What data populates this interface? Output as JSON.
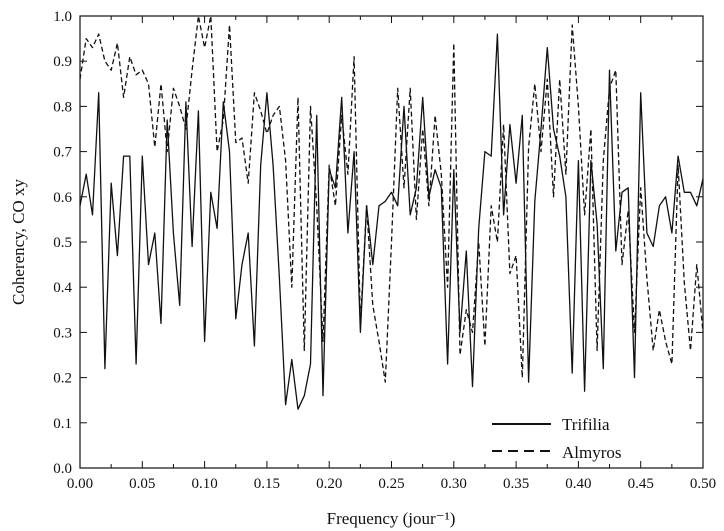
{
  "chart_data": {
    "type": "line",
    "title": "",
    "xlabel": "Frequency (jour⁻¹)",
    "ylabel": "Coherency, CO xy",
    "xlim": [
      0.0,
      0.5
    ],
    "ylim": [
      0.0,
      1.0
    ],
    "x_ticks": [
      "0.00",
      "0.05",
      "0.10",
      "0.15",
      "0.20",
      "0.25",
      "0.30",
      "0.35",
      "0.40",
      "0.45",
      "0.50"
    ],
    "y_ticks": [
      "0.0",
      "0.1",
      "0.2",
      "0.3",
      "0.4",
      "0.5",
      "0.6",
      "0.7",
      "0.8",
      "0.9",
      "1.0"
    ],
    "grid": false,
    "legend_position": "bottom-right",
    "series": [
      {
        "name": "Trifilia",
        "style": "solid",
        "x": [
          0.0,
          0.005,
          0.01,
          0.015,
          0.02,
          0.025,
          0.03,
          0.035,
          0.04,
          0.045,
          0.05,
          0.055,
          0.06,
          0.065,
          0.07,
          0.075,
          0.08,
          0.085,
          0.09,
          0.095,
          0.1,
          0.105,
          0.11,
          0.115,
          0.12,
          0.125,
          0.13,
          0.135,
          0.14,
          0.145,
          0.15,
          0.155,
          0.16,
          0.165,
          0.17,
          0.175,
          0.18,
          0.185,
          0.19,
          0.195,
          0.2,
          0.205,
          0.21,
          0.215,
          0.22,
          0.225,
          0.23,
          0.235,
          0.24,
          0.245,
          0.25,
          0.255,
          0.26,
          0.265,
          0.27,
          0.275,
          0.28,
          0.285,
          0.29,
          0.295,
          0.3,
          0.305,
          0.31,
          0.315,
          0.32,
          0.325,
          0.33,
          0.335,
          0.34,
          0.345,
          0.35,
          0.355,
          0.36,
          0.365,
          0.37,
          0.375,
          0.38,
          0.385,
          0.39,
          0.395,
          0.4,
          0.405,
          0.41,
          0.415,
          0.42,
          0.425,
          0.43,
          0.435,
          0.44,
          0.445,
          0.45,
          0.455,
          0.46,
          0.465,
          0.47,
          0.475,
          0.48,
          0.485,
          0.49,
          0.495,
          0.5
        ],
        "y": [
          0.58,
          0.65,
          0.56,
          0.83,
          0.22,
          0.63,
          0.47,
          0.69,
          0.69,
          0.23,
          0.69,
          0.45,
          0.52,
          0.32,
          0.77,
          0.52,
          0.36,
          0.81,
          0.49,
          0.79,
          0.28,
          0.61,
          0.53,
          0.81,
          0.7,
          0.33,
          0.45,
          0.52,
          0.27,
          0.67,
          0.83,
          0.67,
          0.42,
          0.14,
          0.24,
          0.13,
          0.16,
          0.23,
          0.78,
          0.16,
          0.66,
          0.62,
          0.82,
          0.52,
          0.7,
          0.3,
          0.58,
          0.45,
          0.58,
          0.59,
          0.61,
          0.58,
          0.8,
          0.56,
          0.62,
          0.82,
          0.6,
          0.66,
          0.62,
          0.23,
          0.66,
          0.3,
          0.48,
          0.18,
          0.53,
          0.7,
          0.69,
          0.96,
          0.56,
          0.76,
          0.63,
          0.78,
          0.19,
          0.59,
          0.75,
          0.93,
          0.75,
          0.69,
          0.6,
          0.21,
          0.68,
          0.17,
          0.68,
          0.54,
          0.22,
          0.88,
          0.48,
          0.61,
          0.62,
          0.2,
          0.83,
          0.52,
          0.49,
          0.58,
          0.6,
          0.52,
          0.69,
          0.61,
          0.61,
          0.58,
          0.64
        ]
      },
      {
        "name": "Almyros",
        "style": "dashed",
        "x": [
          0.0,
          0.005,
          0.01,
          0.015,
          0.02,
          0.025,
          0.03,
          0.035,
          0.04,
          0.045,
          0.05,
          0.055,
          0.06,
          0.065,
          0.07,
          0.075,
          0.08,
          0.085,
          0.09,
          0.095,
          0.1,
          0.105,
          0.11,
          0.115,
          0.12,
          0.125,
          0.13,
          0.135,
          0.14,
          0.145,
          0.15,
          0.155,
          0.16,
          0.165,
          0.17,
          0.175,
          0.18,
          0.185,
          0.19,
          0.195,
          0.2,
          0.205,
          0.21,
          0.215,
          0.22,
          0.225,
          0.23,
          0.235,
          0.24,
          0.245,
          0.25,
          0.255,
          0.26,
          0.265,
          0.27,
          0.275,
          0.28,
          0.285,
          0.29,
          0.295,
          0.3,
          0.305,
          0.31,
          0.315,
          0.32,
          0.325,
          0.33,
          0.335,
          0.34,
          0.345,
          0.35,
          0.355,
          0.36,
          0.365,
          0.37,
          0.375,
          0.38,
          0.385,
          0.39,
          0.395,
          0.4,
          0.405,
          0.41,
          0.415,
          0.42,
          0.425,
          0.43,
          0.435,
          0.44,
          0.445,
          0.45,
          0.455,
          0.46,
          0.465,
          0.47,
          0.475,
          0.48,
          0.485,
          0.49,
          0.495,
          0.5
        ],
        "y": [
          0.86,
          0.95,
          0.93,
          0.96,
          0.9,
          0.88,
          0.94,
          0.82,
          0.91,
          0.87,
          0.88,
          0.85,
          0.71,
          0.85,
          0.7,
          0.84,
          0.8,
          0.75,
          0.88,
          1.0,
          0.93,
          1.0,
          0.7,
          0.77,
          0.98,
          0.72,
          0.73,
          0.63,
          0.83,
          0.79,
          0.74,
          0.78,
          0.8,
          0.68,
          0.4,
          0.82,
          0.26,
          0.8,
          0.58,
          0.28,
          0.67,
          0.58,
          0.78,
          0.65,
          0.91,
          0.32,
          0.58,
          0.36,
          0.28,
          0.19,
          0.5,
          0.84,
          0.62,
          0.84,
          0.55,
          0.75,
          0.58,
          0.78,
          0.65,
          0.4,
          0.94,
          0.25,
          0.35,
          0.3,
          0.5,
          0.27,
          0.58,
          0.5,
          0.76,
          0.43,
          0.47,
          0.2,
          0.71,
          0.85,
          0.7,
          0.86,
          0.6,
          0.86,
          0.65,
          0.98,
          0.8,
          0.56,
          0.75,
          0.26,
          0.68,
          0.84,
          0.88,
          0.45,
          0.57,
          0.3,
          0.62,
          0.42,
          0.26,
          0.35,
          0.28,
          0.23,
          0.67,
          0.41,
          0.26,
          0.45,
          0.3
        ]
      }
    ]
  }
}
